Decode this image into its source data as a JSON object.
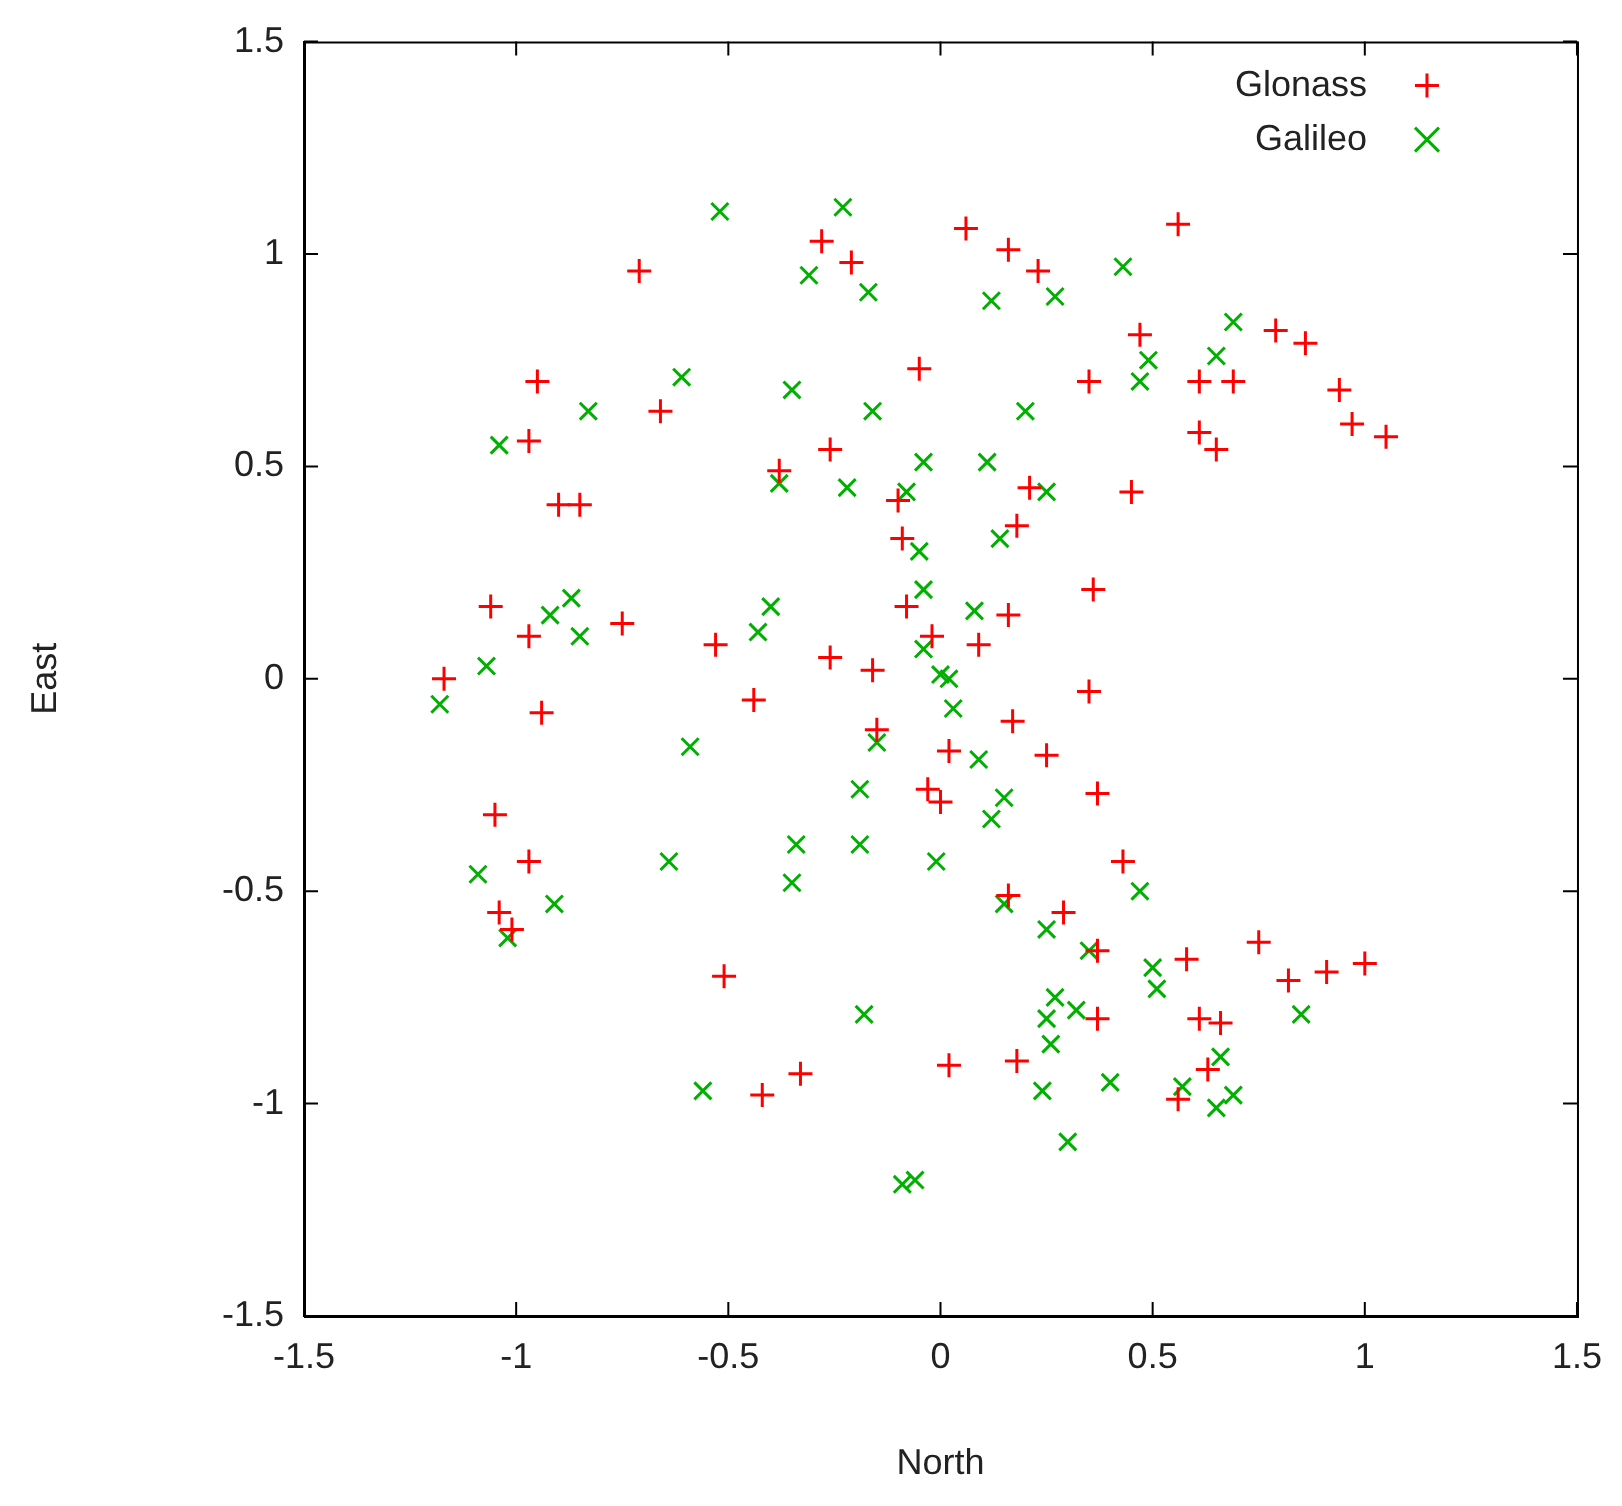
{
  "chart_data": {
    "type": "scatter",
    "xlabel": "North",
    "ylabel": "East",
    "xlim": [
      -1.5,
      1.5
    ],
    "ylim": [
      -1.5,
      1.5
    ],
    "xticks": [
      -1.5,
      -1,
      -0.5,
      0,
      0.5,
      1,
      1.5
    ],
    "yticks": [
      -1.5,
      -1,
      -0.5,
      0,
      0.5,
      1,
      1.5
    ],
    "grid": false,
    "legend": "top right",
    "series": [
      {
        "name": "Glonass",
        "color": "#ff0000",
        "marker": "cross",
        "x": [
          -0.71,
          -0.28,
          -0.21,
          0.06,
          0.16,
          0.23,
          0.56,
          -0.66,
          -0.95,
          -0.97,
          -0.9,
          -0.85,
          -0.38,
          -0.26,
          -0.05,
          -0.1,
          -0.09,
          0.21,
          0.35,
          0.18,
          0.45,
          0.47,
          0.61,
          0.69,
          0.61,
          0.65,
          0.79,
          0.86,
          0.94,
          0.97,
          1.05,
          -1.06,
          -1.17,
          -0.97,
          -0.75,
          -0.53,
          -0.26,
          -0.16,
          -0.02,
          0.09,
          0.16,
          0.36,
          0.35,
          -0.94,
          -0.44,
          -0.15,
          0.02,
          -0.03,
          0,
          0.17,
          0.25,
          0.37,
          0.43,
          -1.05,
          -0.97,
          -1.04,
          -1.01,
          -0.51,
          0.16,
          0.29,
          0.37,
          0.37,
          0.58,
          0.75,
          0.82,
          0.91,
          1,
          0.61,
          0.66,
          0.63,
          0.56,
          -0.42,
          -0.33,
          0.02,
          0.18,
          -0.08
        ],
        "values": [
          0.96,
          1.03,
          0.98,
          1.06,
          1.01,
          0.96,
          1.07,
          0.63,
          0.7,
          0.56,
          0.41,
          0.41,
          0.49,
          0.54,
          0.73,
          0.42,
          0.33,
          0.45,
          0.7,
          0.36,
          0.44,
          0.81,
          0.7,
          0.7,
          0.58,
          0.54,
          0.82,
          0.79,
          0.68,
          0.6,
          0.57,
          0.17,
          0,
          0.1,
          0.13,
          0.08,
          0.05,
          0.02,
          0.1,
          0.08,
          0.15,
          0.21,
          -0.03,
          -0.08,
          -0.05,
          -0.12,
          -0.17,
          -0.26,
          -0.29,
          -0.1,
          -0.18,
          -0.27,
          -0.43,
          -0.32,
          -0.43,
          -0.55,
          -0.59,
          -0.7,
          -0.51,
          -0.55,
          -0.64,
          -0.8,
          -0.66,
          -0.62,
          -0.71,
          -0.69,
          -0.67,
          -0.8,
          -0.81,
          -0.92,
          -0.99,
          -0.98,
          -0.93,
          -0.91,
          -0.9,
          0.17
        ]
      },
      {
        "name": "Galileo",
        "color": "#00b000",
        "marker": "x",
        "x": [
          -0.52,
          -0.23,
          -0.31,
          -0.17,
          0.12,
          0.27,
          0.43,
          -0.61,
          -0.35,
          -1.04,
          -0.83,
          -0.16,
          -0.04,
          0.11,
          0.2,
          0.25,
          0.47,
          0.49,
          0.69,
          0.65,
          -0.38,
          -0.22,
          -0.08,
          -0.05,
          -0.04,
          -0.87,
          -0.85,
          -0.92,
          -0.4,
          -0.43,
          -1.07,
          -1.18,
          -0.04,
          0.08,
          0.14,
          0.02,
          0.03,
          -0.15,
          -0.19,
          0.09,
          0.12,
          0.15,
          0,
          -0.59,
          -1.09,
          -1.02,
          -0.91,
          -0.64,
          -0.34,
          -0.35,
          -0.19,
          -0.01,
          0.15,
          0.25,
          0.27,
          0.25,
          0.26,
          0.35,
          0.32,
          0.24,
          -0.18,
          -0.56,
          -0.06,
          -0.09,
          0.3,
          0.5,
          0.51,
          0.4,
          0.57,
          0.66,
          0.65,
          0.69,
          0.85,
          0.47
        ],
        "values": [
          1.1,
          1.11,
          0.95,
          0.91,
          0.89,
          0.9,
          0.97,
          0.71,
          0.68,
          0.55,
          0.63,
          0.63,
          0.51,
          0.51,
          0.63,
          0.44,
          0.7,
          0.75,
          0.84,
          0.76,
          0.46,
          0.45,
          0.44,
          0.3,
          0.21,
          0.19,
          0.1,
          0.15,
          0.17,
          0.11,
          0.03,
          -0.06,
          0.07,
          0.16,
          0.33,
          0,
          -0.07,
          -0.15,
          -0.26,
          -0.19,
          -0.33,
          -0.28,
          0.01,
          -0.16,
          -0.46,
          -0.61,
          -0.53,
          -0.43,
          -0.39,
          -0.48,
          -0.39,
          -0.43,
          -0.53,
          -0.59,
          -0.75,
          -0.8,
          -0.86,
          -0.64,
          -0.78,
          -0.97,
          -0.79,
          -0.97,
          -1.18,
          -1.19,
          -1.09,
          -0.68,
          -0.73,
          -0.95,
          -0.96,
          -0.89,
          -1.01,
          -0.98,
          -0.79,
          -0.5
        ]
      }
    ]
  }
}
